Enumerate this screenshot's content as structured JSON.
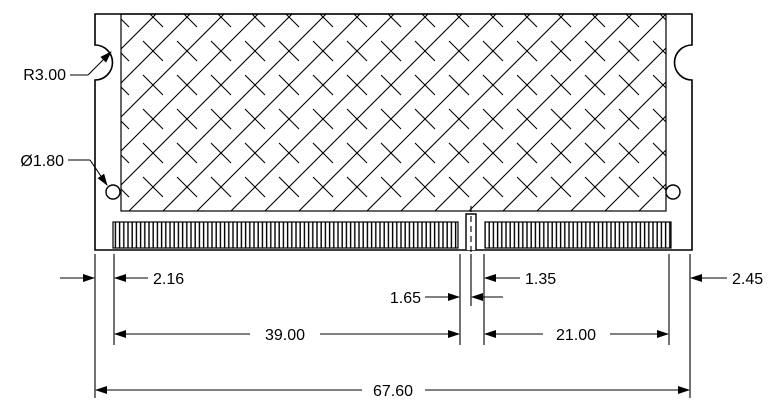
{
  "diagram": {
    "subject": "SO-DIMM module outline drawing",
    "colors": {
      "line": "#000000",
      "background": "#ffffff",
      "hatch": "#000000"
    },
    "labels": {
      "notch_radius": "R3.00",
      "hole_diameter": "Ø1.80",
      "left_edge_to_first_pin": "2.16",
      "key_notch_right_offset": "1.35",
      "right_edge_to_last_pin": "2.45",
      "key_notch_width": "1.65",
      "left_pin_span": "39.00",
      "right_pin_span": "21.00",
      "overall_width": "67.60"
    }
  }
}
